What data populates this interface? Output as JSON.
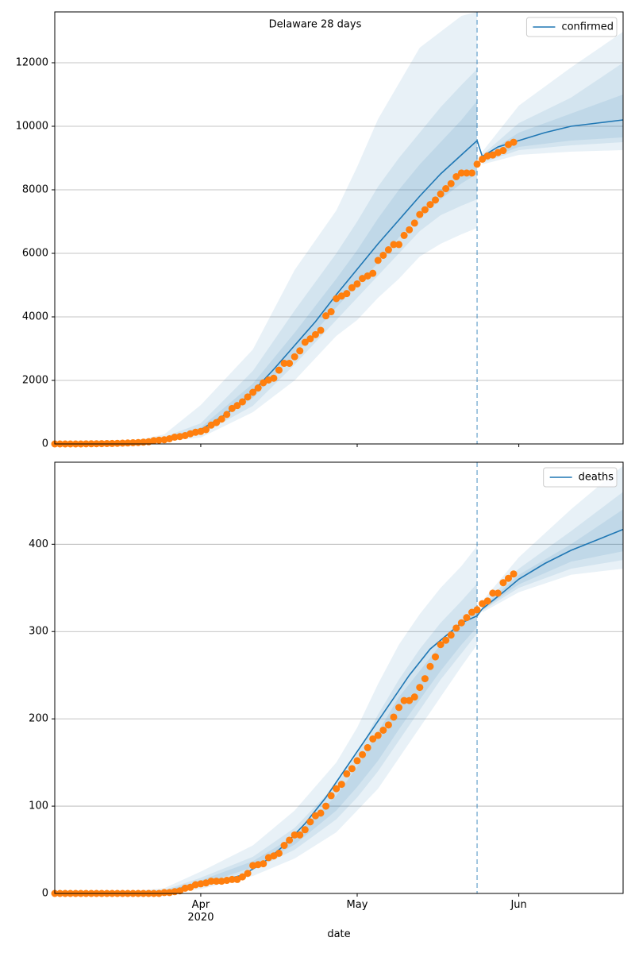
{
  "chart_data": [
    {
      "type": "line",
      "title": "Delaware 28 days",
      "xlim": [
        0,
        109
      ],
      "ylim": [
        0,
        13600
      ],
      "yticks": [
        0,
        2000,
        4000,
        6000,
        8000,
        10000,
        12000
      ],
      "xticks": [
        28,
        58,
        89
      ],
      "grid": "y",
      "legend": "upper right",
      "vline": 81,
      "vline_color": "#1f77b4",
      "series": [
        {
          "name": "confirmed",
          "color": "#1f77b4",
          "x": [
            0,
            14,
            21,
            24,
            28,
            32,
            35,
            38,
            42,
            46,
            50,
            54,
            58,
            62,
            66,
            70,
            74,
            78,
            81,
            82,
            85,
            89,
            94,
            99,
            104,
            109
          ],
          "values": [
            0,
            30,
            150,
            250,
            450,
            850,
            1200,
            1650,
            2350,
            3100,
            3850,
            4700,
            5500,
            6300,
            7050,
            7800,
            8500,
            9100,
            9550,
            9050,
            9350,
            9550,
            9800,
            10000,
            10100,
            10200
          ]
        }
      ],
      "observed": {
        "color": "#ff7f0e",
        "x": [
          0,
          1,
          2,
          3,
          4,
          5,
          6,
          7,
          8,
          9,
          10,
          11,
          12,
          13,
          14,
          15,
          16,
          17,
          18,
          19,
          20,
          21,
          22,
          23,
          24,
          25,
          26,
          27,
          28,
          29,
          30,
          31,
          32,
          33,
          34,
          35,
          36,
          37,
          38,
          39,
          40,
          41,
          42,
          43,
          44,
          45,
          46,
          47,
          48,
          49,
          50,
          51,
          52,
          53,
          54,
          55,
          56,
          57,
          58,
          59,
          60,
          61,
          62,
          63,
          64,
          65,
          66,
          67,
          68,
          69,
          70,
          71,
          72,
          73,
          74,
          75,
          76,
          77,
          78,
          79,
          80,
          81,
          82,
          83,
          84,
          85,
          86,
          87,
          88
        ],
        "values": [
          0,
          0,
          0,
          0,
          0,
          0,
          4,
          6,
          7,
          10,
          13,
          15,
          19,
          26,
          30,
          39,
          45,
          56,
          68,
          104,
          119,
          130,
          163,
          214,
          232,
          264,
          319,
          368,
          393,
          450,
          593,
          673,
          783,
          928,
          1116,
          1209,
          1326,
          1479,
          1625,
          1761,
          1926,
          2014,
          2070,
          2323,
          2538,
          2538,
          2745,
          2931,
          3200,
          3308,
          3442,
          3576,
          4034,
          4162,
          4575,
          4655,
          4734,
          4918,
          5038,
          5208,
          5288,
          5371,
          5778,
          5939,
          6111,
          6277,
          6277,
          6565,
          6741,
          6952,
          7223,
          7373,
          7535,
          7679,
          7869,
          8037,
          8194,
          8414,
          8529,
          8529,
          8529,
          8809,
          8965,
          9066,
          9096,
          9171,
          9236,
          9422,
          9498
        ]
      },
      "bands": [
        {
          "color": "#1f77b4",
          "x": [
            0,
            14,
            21,
            28,
            38,
            46,
            54,
            58,
            62,
            66,
            70,
            74,
            78,
            81
          ],
          "levels": [
            {
              "lower": [
                0,
                15,
                80,
                200,
                1000,
                2000,
                3400,
                3900,
                4600,
                5200,
                5900,
                6300,
                6600,
                6800
              ],
              "upper": [
                0,
                60,
                300,
                1225,
                2975,
                5475,
                7350,
                8725,
                10225,
                11350,
                12475,
                12975,
                13475,
                13600
              ]
            },
            {
              "lower": [
                0,
                20,
                100,
                300,
                1200,
                2500,
                3900,
                4600,
                5300,
                6000,
                6700,
                7200,
                7500,
                7700
              ],
              "upper": [
                0,
                45,
                220,
                650,
                2300,
                4200,
                6000,
                7000,
                8100,
                9000,
                9800,
                10600,
                11300,
                11800
              ]
            },
            {
              "lower": [
                0,
                25,
                120,
                380,
                1450,
                2800,
                4300,
                5000,
                5700,
                6500,
                7100,
                7700,
                8200,
                8500
              ],
              "upper": [
                0,
                35,
                180,
                520,
                1900,
                3500,
                5200,
                6100,
                7100,
                8000,
                8800,
                9500,
                10200,
                10800
              ]
            }
          ]
        },
        {
          "color": "#1f77b4",
          "x": [
            82,
            89,
            99,
            109
          ],
          "levels": [
            {
              "lower": [
                8800,
                9100,
                9200,
                9250
              ],
              "upper": [
                9200,
                10650,
                11850,
                12975
              ]
            },
            {
              "lower": [
                8850,
                9250,
                9400,
                9500
              ],
              "upper": [
                9100,
                10100,
                10900,
                12000
              ]
            },
            {
              "lower": [
                8900,
                9350,
                9550,
                9650
              ],
              "upper": [
                9050,
                9800,
                10400,
                11000
              ]
            }
          ]
        }
      ]
    },
    {
      "type": "line",
      "xlabel": "date",
      "xlim": [
        0,
        109
      ],
      "ylim": [
        0,
        494
      ],
      "yticks": [
        0,
        100,
        200,
        300,
        400
      ],
      "xticks": [
        {
          "value": 28,
          "label": "Apr\n2020"
        },
        {
          "value": 58,
          "label": "May"
        },
        {
          "value": 89,
          "label": "Jun"
        }
      ],
      "grid": "y",
      "legend": "upper right",
      "vline": 81,
      "vline_color": "#1f77b4",
      "series": [
        {
          "name": "deaths",
          "color": "#1f77b4",
          "x": [
            0,
            21,
            28,
            32,
            36,
            40,
            44,
            48,
            52,
            56,
            60,
            64,
            68,
            72,
            76,
            78,
            81,
            82,
            86,
            89,
            94,
            99,
            104,
            109
          ],
          "values": [
            0,
            1,
            12,
            15,
            21,
            35,
            55,
            80,
            110,
            145,
            180,
            215,
            250,
            280,
            300,
            310,
            318,
            326,
            345,
            360,
            378,
            393,
            405,
            417
          ]
        }
      ],
      "observed": {
        "color": "#ff7f0e",
        "x": [
          0,
          1,
          2,
          3,
          4,
          5,
          6,
          7,
          8,
          9,
          10,
          11,
          12,
          13,
          14,
          15,
          16,
          17,
          18,
          19,
          20,
          21,
          22,
          23,
          24,
          25,
          26,
          27,
          28,
          29,
          30,
          31,
          32,
          33,
          34,
          35,
          36,
          37,
          38,
          39,
          40,
          41,
          42,
          43,
          44,
          45,
          46,
          47,
          48,
          49,
          50,
          51,
          52,
          53,
          54,
          55,
          56,
          57,
          58,
          59,
          60,
          61,
          62,
          63,
          64,
          65,
          66,
          67,
          68,
          69,
          70,
          71,
          72,
          73,
          74,
          75,
          76,
          77,
          78,
          79,
          80,
          81,
          82,
          83,
          84,
          85,
          86,
          87,
          88
        ],
        "values": [
          0,
          0,
          0,
          0,
          0,
          0,
          0,
          0,
          0,
          0,
          0,
          0,
          0,
          0,
          0,
          0,
          0,
          0,
          0,
          0,
          0,
          1,
          1,
          2,
          3,
          6,
          7,
          10,
          11,
          12,
          14,
          14,
          14,
          15,
          16,
          16,
          19,
          23,
          32,
          33,
          34,
          41,
          43,
          46,
          55,
          61,
          67,
          67,
          73,
          82,
          89,
          92,
          100,
          112,
          120,
          125,
          137,
          143,
          152,
          159,
          167,
          177,
          181,
          187,
          193,
          202,
          213,
          221,
          221,
          225,
          236,
          246,
          260,
          271,
          285,
          290,
          296,
          304,
          310,
          316,
          322,
          325,
          332,
          335,
          344,
          344,
          356,
          361,
          366
        ]
      },
      "bands": [
        {
          "color": "#1f77b4",
          "x": [
            0,
            14,
            21,
            28,
            38,
            46,
            54,
            58,
            62,
            66,
            70,
            74,
            78,
            81
          ],
          "levels": [
            {
              "lower": [
                0,
                0,
                0,
                5,
                20,
                40,
                70,
                95,
                120,
                155,
                190,
                225,
                260,
                285
              ],
              "upper": [
                0,
                2,
                6,
                25,
                55,
                95,
                150,
                190,
                240,
                285,
                320,
                350,
                375,
                398
              ]
            },
            {
              "lower": [
                0,
                0,
                1,
                8,
                27,
                50,
                85,
                110,
                140,
                175,
                210,
                245,
                275,
                298
              ],
              "upper": [
                0,
                1,
                4,
                18,
                42,
                75,
                125,
                160,
                205,
                245,
                280,
                310,
                335,
                355
              ]
            },
            {
              "lower": [
                0,
                0,
                1,
                10,
                30,
                56,
                95,
                122,
                152,
                188,
                222,
                255,
                285,
                305
              ],
              "upper": [
                0,
                1,
                3,
                15,
                37,
                66,
                112,
                145,
                185,
                225,
                255,
                285,
                310,
                330
              ]
            }
          ]
        },
        {
          "color": "#1f77b4",
          "x": [
            82,
            89,
            99,
            109
          ],
          "levels": [
            {
              "lower": [
                322,
                345,
                365,
                372
              ],
              "upper": [
                335,
                385,
                440,
                490
              ]
            },
            {
              "lower": [
                324,
                350,
                372,
                382
              ],
              "upper": [
                330,
                372,
                415,
                460
              ]
            },
            {
              "lower": [
                325,
                354,
                380,
                392
              ],
              "upper": [
                328,
                365,
                400,
                440
              ]
            }
          ]
        }
      ]
    }
  ]
}
